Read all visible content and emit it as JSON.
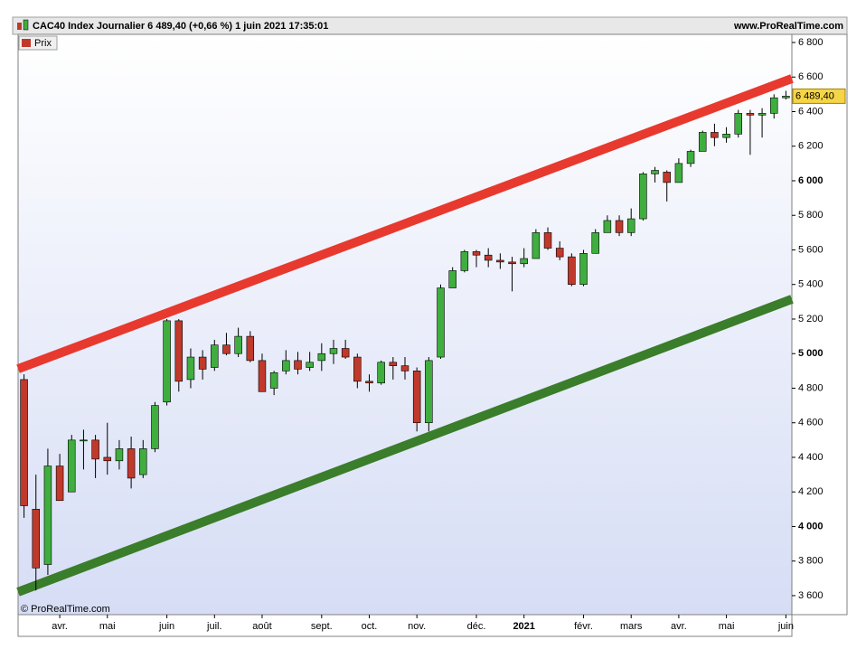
{
  "chart_data": {
    "type": "candlestick",
    "title": "CAC40 Index Journalier 6 489,40 (+0,66 %) 1 juin 2021 17:35:01",
    "source": "www.ProRealTime.com",
    "legend": "Prix",
    "watermark": "© ProRealTime.com",
    "categories": [
      null,
      null,
      null,
      "avr.",
      null,
      null,
      null,
      "mai",
      null,
      null,
      null,
      null,
      "juin",
      null,
      null,
      null,
      "juil.",
      null,
      null,
      null,
      "août",
      null,
      null,
      null,
      null,
      "sept.",
      null,
      null,
      null,
      "oct.",
      null,
      null,
      null,
      "nov.",
      null,
      null,
      null,
      null,
      "déc.",
      null,
      null,
      null,
      "2021",
      null,
      null,
      null,
      null,
      "févr.",
      null,
      null,
      null,
      "mars",
      null,
      null,
      null,
      "avr.",
      null,
      null,
      null,
      "mai",
      null,
      null,
      null,
      null,
      "juin"
    ],
    "open": [
      4850,
      4100,
      3780,
      4350,
      4200,
      4500,
      4500,
      4400,
      4380,
      4450,
      4300,
      4450,
      4720,
      5190,
      4850,
      4980,
      4920,
      5050,
      5000,
      5100,
      4960,
      4800,
      4900,
      4960,
      4920,
      4960,
      5000,
      5030,
      4980,
      4840,
      4830,
      4950,
      4930,
      4900,
      4600,
      4980,
      5380,
      5480,
      5590,
      5570,
      5540,
      5530,
      5520,
      5550,
      5700,
      5610,
      5560,
      5400,
      5580,
      5700,
      5770,
      5700,
      5780,
      6040,
      6050,
      5990,
      6100,
      6170,
      6280,
      6250,
      6270,
      6390,
      6380,
      6390,
      6480
    ],
    "high": [
      4880,
      4300,
      4450,
      4420,
      4530,
      4560,
      4530,
      4600,
      4500,
      4520,
      4500,
      4720,
      5200,
      5200,
      5030,
      5020,
      5080,
      5120,
      5150,
      5130,
      5000,
      4900,
      5020,
      5010,
      5010,
      5060,
      5080,
      5080,
      5000,
      4880,
      4960,
      4980,
      4980,
      4920,
      4980,
      5400,
      5500,
      5600,
      5600,
      5610,
      5580,
      5560,
      5610,
      5720,
      5730,
      5650,
      5580,
      5600,
      5720,
      5800,
      5800,
      5840,
      6050,
      6080,
      6060,
      6130,
      6180,
      6290,
      6330,
      6310,
      6410,
      6410,
      6420,
      6500,
      6520
    ],
    "low": [
      4050,
      3630,
      3720,
      4150,
      4200,
      4330,
      4280,
      4300,
      4330,
      4220,
      4280,
      4430,
      4700,
      4780,
      4800,
      4850,
      4900,
      4990,
      4980,
      4950,
      4780,
      4760,
      4880,
      4880,
      4900,
      4900,
      4940,
      4970,
      4800,
      4780,
      4820,
      4850,
      4850,
      4550,
      4550,
      4970,
      5380,
      5470,
      5500,
      5500,
      5490,
      5360,
      5500,
      5550,
      5600,
      5540,
      5390,
      5390,
      5580,
      5720,
      5680,
      5680,
      5770,
      5990,
      5880,
      5990,
      6080,
      6170,
      6200,
      6220,
      6250,
      6150,
      6250,
      6360,
      6470
    ],
    "close": [
      4120,
      3760,
      4350,
      4150,
      4500,
      4500,
      4390,
      4380,
      4450,
      4280,
      4450,
      4700,
      5190,
      4840,
      4980,
      4910,
      5050,
      5000,
      5100,
      4960,
      4780,
      4890,
      4960,
      4910,
      4950,
      5000,
      5030,
      4980,
      4840,
      4830,
      4950,
      4930,
      4900,
      4600,
      4960,
      5380,
      5480,
      5590,
      5570,
      5540,
      5530,
      5520,
      5550,
      5700,
      5610,
      5560,
      5400,
      5580,
      5700,
      5770,
      5700,
      5780,
      6040,
      6060,
      5990,
      6100,
      6170,
      6280,
      6250,
      6270,
      6390,
      6380,
      6390,
      6480,
      6489.4
    ],
    "last_value_label": "6 489,40",
    "up_color": "#3fae3f",
    "down_color": "#c0392b",
    "trend_lines": [
      {
        "color": "#e8392f",
        "values": [
          4912,
          6591
        ]
      },
      {
        "color": "#3a7d2a",
        "values": [
          3621,
          5315
        ]
      }
    ],
    "ylim": [
      3490,
      6847
    ],
    "yticks": [
      {
        "value": 3600,
        "label": "3 600"
      },
      {
        "value": 3800,
        "label": "3 800"
      },
      {
        "value": 4000,
        "label": "4 000"
      },
      {
        "value": 4200,
        "label": "4 200"
      },
      {
        "value": 4400,
        "label": "4 400"
      },
      {
        "value": 4600,
        "label": "4 600"
      },
      {
        "value": 4800,
        "label": "4 800"
      },
      {
        "value": 5000,
        "label": "5 000"
      },
      {
        "value": 5200,
        "label": "5 200"
      },
      {
        "value": 5400,
        "label": "5 400"
      },
      {
        "value": 5600,
        "label": "5 600"
      },
      {
        "value": 5800,
        "label": "5 800"
      },
      {
        "value": 6000,
        "label": "6 000"
      },
      {
        "value": 6200,
        "label": "6 200"
      },
      {
        "value": 6400,
        "label": "6 400"
      },
      {
        "value": 6600,
        "label": "6 600"
      },
      {
        "value": 6800,
        "label": "6 800"
      }
    ]
  }
}
